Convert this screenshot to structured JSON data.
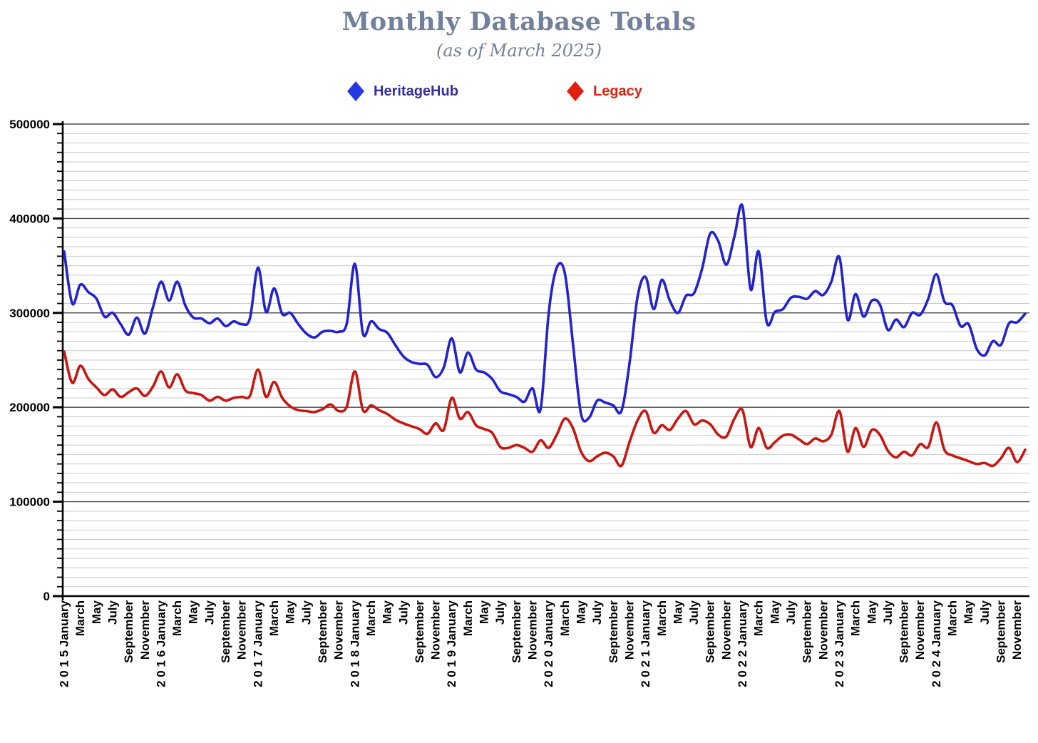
{
  "header": {
    "title": "Monthly Database Totals",
    "subtitle": "(as of March 2025)"
  },
  "legend": [
    {
      "label": "HeritageHub",
      "marker_color": "#2538E2",
      "label_color": "#32309C"
    },
    {
      "label": "Legacy",
      "marker_color": "#E3200F",
      "label_color": "#E3200F"
    }
  ],
  "chart_data": {
    "type": "line",
    "title": "Monthly Database Totals",
    "subtitle": "(as of March 2025)",
    "x_start": "January 2015",
    "x_end": "December 2024",
    "points_per_series": 120,
    "ylim": [
      0,
      500000
    ],
    "grid": {
      "minor_step": 10000,
      "major_step": 100000,
      "vertical": false
    },
    "legend_position": "top",
    "y_tick_labels": [
      "0",
      "100000",
      "200000",
      "300000",
      "400000",
      "500000"
    ],
    "x_tick_every_months": 2,
    "x_tick_labels": [
      "2 0 1 5   January",
      "March",
      "May",
      "July",
      "September",
      "November",
      "2 0 1 6   January",
      "March",
      "May",
      "July",
      "September",
      "November",
      "2 0 1 7   January",
      "March",
      "May",
      "July",
      "September",
      "November",
      "2 0 1 8   January",
      "March",
      "May",
      "July",
      "September",
      "November",
      "2 0 1 9   January",
      "March",
      "May",
      "July",
      "September",
      "November",
      "2 0 2 0   January",
      "March",
      "May",
      "July",
      "September",
      "November",
      "2 0 2 1   January",
      "March",
      "May",
      "July",
      "September",
      "November",
      "2 0 2 2   January",
      "March",
      "May",
      "July",
      "September",
      "November",
      "2 0 2 3   January",
      "March",
      "May",
      "July",
      "September",
      "November",
      "2 0 2 4   January",
      "March",
      "May",
      "July",
      "September",
      "November"
    ],
    "series": [
      {
        "name": "Legacy",
        "color": "#C81610",
        "values": [
          259000,
          226000,
          244000,
          230000,
          221000,
          213000,
          219000,
          211000,
          216000,
          220000,
          212000,
          222000,
          238000,
          221000,
          235000,
          218000,
          215000,
          213000,
          207000,
          211000,
          207000,
          210000,
          211000,
          212000,
          240000,
          211000,
          227000,
          210000,
          201000,
          197000,
          196000,
          195000,
          198000,
          203000,
          196000,
          201000,
          238000,
          197000,
          202000,
          197000,
          193000,
          187000,
          183000,
          180000,
          177000,
          172000,
          183000,
          176000,
          210000,
          188000,
          195000,
          181000,
          177000,
          173000,
          158000,
          157000,
          160000,
          157000,
          153000,
          165000,
          157000,
          171000,
          188000,
          178000,
          153000,
          143000,
          148000,
          152000,
          148000,
          138000,
          163000,
          186000,
          196000,
          173000,
          181000,
          176000,
          188000,
          196000,
          182000,
          186000,
          182000,
          171000,
          169000,
          188000,
          197000,
          158000,
          178000,
          157000,
          163000,
          170000,
          171000,
          166000,
          161000,
          167000,
          164000,
          171000,
          196000,
          153000,
          178000,
          158000,
          176000,
          171000,
          154000,
          147000,
          153000,
          149000,
          161000,
          158000,
          184000,
          155000,
          149000,
          146000,
          143000,
          140000,
          141000,
          138000,
          146000,
          157000,
          142000,
          155000
        ]
      },
      {
        "name": "HeritageHub",
        "color": "#2222D0",
        "values": [
          365000,
          310000,
          330000,
          322000,
          315000,
          296000,
          300000,
          288000,
          277000,
          295000,
          278000,
          306000,
          333000,
          313000,
          333000,
          308000,
          295000,
          294000,
          289000,
          294000,
          286000,
          291000,
          288000,
          294000,
          348000,
          301000,
          326000,
          299000,
          300000,
          288000,
          278000,
          274000,
          280000,
          281000,
          280000,
          289000,
          352000,
          278000,
          291000,
          283000,
          279000,
          266000,
          254000,
          248000,
          246000,
          245000,
          232000,
          242000,
          273000,
          237000,
          258000,
          240000,
          237000,
          230000,
          217000,
          214000,
          211000,
          206000,
          220000,
          198000,
          300000,
          348000,
          342000,
          268000,
          193000,
          189000,
          207000,
          205000,
          202000,
          196000,
          246000,
          317000,
          338000,
          304000,
          335000,
          313000,
          300000,
          318000,
          321000,
          347000,
          384000,
          376000,
          351000,
          381000,
          413000,
          325000,
          365000,
          290000,
          301000,
          304000,
          316000,
          317000,
          315000,
          323000,
          319000,
          333000,
          359000,
          293000,
          320000,
          296000,
          313000,
          309000,
          282000,
          293000,
          285000,
          300000,
          298000,
          315000,
          341000,
          312000,
          308000,
          286000,
          288000,
          262000,
          255000,
          270000,
          266000,
          289000,
          290000,
          299000
        ]
      }
    ]
  }
}
